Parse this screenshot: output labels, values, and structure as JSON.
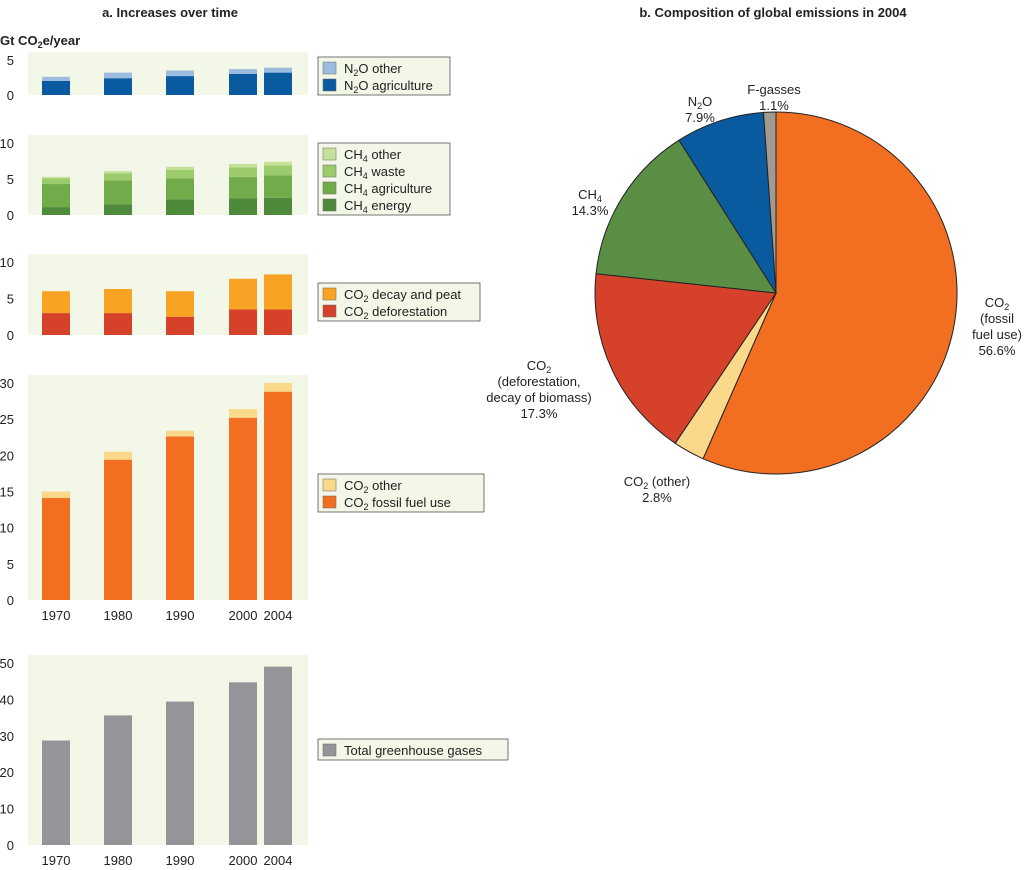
{
  "titles": {
    "left": "a. Increases over time",
    "right": "b. Composition of global emissions in 2004"
  },
  "unit": {
    "pre": "Gt CO",
    "sub": "2",
    "post": "e/year"
  },
  "chart_data": [
    {
      "type": "bar",
      "stacked": true,
      "panel": "N2O",
      "categories": [
        "1970",
        "1980",
        "1990",
        "2000",
        "2004"
      ],
      "ylim": [
        0,
        5
      ],
      "ticks": [
        0,
        5
      ],
      "series": [
        {
          "name": "N2O agriculture",
          "label": {
            "pre": "N",
            "sub": "2",
            "post": "O agriculture"
          },
          "color": "#0a5aa0",
          "values": [
            2.0,
            2.4,
            2.7,
            3.0,
            3.2
          ]
        },
        {
          "name": "N2O other",
          "label": {
            "pre": "N",
            "sub": "2",
            "post": "O other"
          },
          "color": "#9dbde0",
          "values": [
            0.6,
            0.8,
            0.8,
            0.7,
            0.7
          ]
        }
      ]
    },
    {
      "type": "bar",
      "stacked": true,
      "panel": "CH4",
      "categories": [
        "1970",
        "1980",
        "1990",
        "2000",
        "2004"
      ],
      "ylim": [
        0,
        10
      ],
      "ticks": [
        0,
        5,
        10
      ],
      "series": [
        {
          "name": "CH4 energy",
          "label": {
            "pre": "CH",
            "sub": "4",
            "post": " energy"
          },
          "color": "#4f8a3c",
          "values": [
            1.1,
            1.5,
            2.2,
            2.3,
            2.4
          ]
        },
        {
          "name": "CH4 agriculture",
          "label": {
            "pre": "CH",
            "sub": "4",
            "post": " agriculture"
          },
          "color": "#72ac4a",
          "values": [
            3.2,
            3.3,
            2.9,
            3.0,
            3.1
          ]
        },
        {
          "name": "CH4 waste",
          "label": {
            "pre": "CH",
            "sub": "4",
            "post": " waste"
          },
          "color": "#9ccb6b",
          "values": [
            0.8,
            1.0,
            1.2,
            1.3,
            1.4
          ]
        },
        {
          "name": "CH4 other",
          "label": {
            "pre": "CH",
            "sub": "4",
            "post": " other"
          },
          "color": "#c6e29a",
          "values": [
            0.2,
            0.3,
            0.4,
            0.5,
            0.5
          ]
        }
      ]
    },
    {
      "type": "bar",
      "stacked": true,
      "panel": "CO2-land",
      "categories": [
        "1970",
        "1980",
        "1990",
        "2000",
        "2004"
      ],
      "ylim": [
        0,
        10
      ],
      "ticks": [
        0,
        5,
        10
      ],
      "series": [
        {
          "name": "CO2 deforestation",
          "label": {
            "pre": "CO",
            "sub": "2",
            "post": " deforestation"
          },
          "color": "#d6412a",
          "values": [
            3.0,
            3.0,
            2.5,
            3.5,
            3.5
          ]
        },
        {
          "name": "CO2 decay and peat",
          "label": {
            "pre": "CO",
            "sub": "2",
            "post": " decay and peat"
          },
          "color": "#f8a323",
          "values": [
            3.0,
            3.3,
            3.5,
            4.2,
            4.8
          ]
        }
      ]
    },
    {
      "type": "bar",
      "stacked": true,
      "panel": "CO2-fossil",
      "categories": [
        "1970",
        "1980",
        "1990",
        "2000",
        "2004"
      ],
      "ylim": [
        0,
        30
      ],
      "ticks": [
        0,
        5,
        10,
        15,
        20,
        25,
        30
      ],
      "series": [
        {
          "name": "CO2 fossil fuel use",
          "label": {
            "pre": "CO",
            "sub": "2",
            "post": " fossil fuel use"
          },
          "color": "#f26f22",
          "values": [
            14.1,
            19.4,
            22.6,
            25.2,
            28.8
          ]
        },
        {
          "name": "CO2 other",
          "label": {
            "pre": "CO",
            "sub": "2",
            "post": " other"
          },
          "color": "#fbd98a",
          "values": [
            0.9,
            1.1,
            0.8,
            1.2,
            1.2
          ]
        }
      ]
    },
    {
      "type": "bar",
      "stacked": false,
      "panel": "total",
      "categories": [
        "1970",
        "1980",
        "1990",
        "2000",
        "2004"
      ],
      "ylim": [
        0,
        50
      ],
      "ticks": [
        0,
        10,
        20,
        30,
        40,
        50
      ],
      "series": [
        {
          "name": "Total greenhouse gases",
          "label": {
            "pre": "Total greenhouse gases",
            "sub": "",
            "post": ""
          },
          "color": "#939598",
          "values": [
            28.7,
            35.6,
            39.4,
            44.7,
            49.0
          ]
        }
      ]
    },
    {
      "type": "pie",
      "panel": "composition-2004",
      "slices": [
        {
          "name": "CO2 (fossil fuel use)",
          "value": 56.6,
          "color": "#f26f22",
          "lines": [
            {
              "pre": "CO",
              "sub": "2",
              "post": ""
            },
            {
              "pre": "(fossil",
              "sub": "",
              "post": ""
            },
            {
              "pre": "fuel use)",
              "sub": "",
              "post": ""
            },
            {
              "pre": "56.6%",
              "sub": "",
              "post": ""
            }
          ]
        },
        {
          "name": "CO2 (other)",
          "value": 2.8,
          "color": "#fbd98a",
          "lines": [
            {
              "pre": "CO",
              "sub": "2",
              "post": " (other)"
            },
            {
              "pre": "2.8%",
              "sub": "",
              "post": ""
            }
          ]
        },
        {
          "name": "CO2 (deforestation, decay of biomass)",
          "value": 17.3,
          "color": "#d6412a",
          "lines": [
            {
              "pre": "CO",
              "sub": "2",
              "post": ""
            },
            {
              "pre": "(deforestation,",
              "sub": "",
              "post": ""
            },
            {
              "pre": "decay of biomass)",
              "sub": "",
              "post": ""
            },
            {
              "pre": "17.3%",
              "sub": "",
              "post": ""
            }
          ]
        },
        {
          "name": "CH4",
          "value": 14.3,
          "color": "#5a8e44",
          "lines": [
            {
              "pre": "CH",
              "sub": "4",
              "post": ""
            },
            {
              "pre": "14.3%",
              "sub": "",
              "post": ""
            }
          ]
        },
        {
          "name": "N2O",
          "value": 7.9,
          "color": "#0a5aa0",
          "lines": [
            {
              "pre": "N",
              "sub": "2",
              "post": "O"
            },
            {
              "pre": "7.9%",
              "sub": "",
              "post": ""
            }
          ]
        },
        {
          "name": "F-gasses",
          "value": 1.1,
          "color": "#a09a90",
          "lines": [
            {
              "pre": "F-gasses",
              "sub": "",
              "post": ""
            },
            {
              "pre": "1.1%",
              "sub": "",
              "post": ""
            }
          ]
        }
      ]
    }
  ]
}
